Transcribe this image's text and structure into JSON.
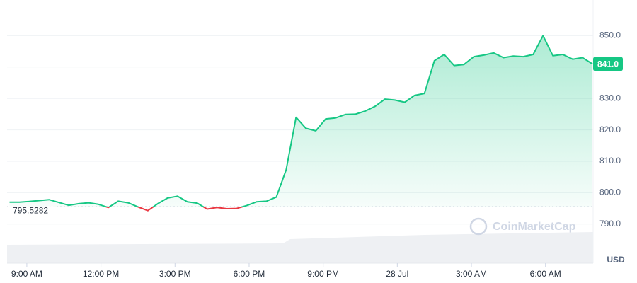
{
  "chart_data": {
    "type": "line",
    "x": [
      -0.7,
      -0.3,
      0.1,
      0.5,
      0.9,
      1.3,
      1.7,
      2.1,
      2.5,
      2.9,
      3.3,
      3.7,
      4.1,
      4.5,
      4.9,
      5.3,
      5.7,
      6.1,
      6.5,
      6.9,
      7.3,
      7.7,
      8.1,
      8.5,
      8.9,
      9.3,
      9.7,
      10.1,
      10.5,
      10.9,
      11.3,
      11.7,
      12.1,
      12.5,
      12.9,
      13.3,
      13.7,
      14.1,
      14.5,
      14.9,
      15.3,
      15.7,
      16.1,
      16.5,
      16.9,
      17.3,
      17.7,
      18.1,
      18.5,
      18.9,
      19.3,
      19.7,
      20.1,
      20.5,
      20.9,
      21.3,
      21.7,
      22.1,
      22.5,
      22.9
    ],
    "values": [
      797.0,
      797.0,
      797.2,
      797.5,
      797.8,
      796.9,
      796.0,
      796.5,
      796.8,
      796.3,
      795.3,
      797.3,
      796.8,
      795.5,
      794.3,
      796.5,
      798.3,
      798.9,
      797.1,
      796.7,
      794.8,
      795.3,
      794.9,
      795.0,
      795.9,
      797.1,
      797.3,
      798.6,
      807.3,
      824.0,
      820.5,
      819.7,
      823.5,
      823.8,
      824.9,
      825.0,
      826.0,
      827.5,
      829.8,
      829.5,
      828.8,
      831.0,
      831.6,
      842.0,
      844.0,
      840.5,
      840.8,
      843.3,
      843.8,
      844.5,
      843.0,
      843.5,
      843.3,
      844.0,
      850.0,
      843.6,
      844.0,
      842.5,
      843.0,
      841.0
    ],
    "up_color": "#16c784",
    "down_color": "#ea3943",
    "baseline": 795.5282,
    "last_price_label": "841.0",
    "xlim": [
      -0.8,
      22.9
    ],
    "xticks": [
      {
        "value": 0,
        "label": "9:00 AM"
      },
      {
        "value": 3,
        "label": "12:00 PM"
      },
      {
        "value": 6,
        "label": "3:00 PM"
      },
      {
        "value": 9,
        "label": "6:00 PM"
      },
      {
        "value": 12,
        "label": "9:00 PM"
      },
      {
        "value": 15,
        "label": "28 Jul"
      },
      {
        "value": 18,
        "label": "3:00 AM"
      },
      {
        "value": 21,
        "label": "6:00 AM"
      }
    ],
    "ylim": [
      785,
      860
    ],
    "yticks": [
      {
        "value": 790,
        "label": "790.0"
      },
      {
        "value": 800,
        "label": "800.0"
      },
      {
        "value": 810,
        "label": "810.0"
      },
      {
        "value": 820,
        "label": "820.0"
      },
      {
        "value": 830,
        "label": "830.0"
      },
      {
        "value": 840,
        "label": "840.0"
      },
      {
        "value": 850,
        "label": "850.0"
      }
    ],
    "grid": true,
    "currency": "USD",
    "watermark": "CoinMarketCap"
  }
}
